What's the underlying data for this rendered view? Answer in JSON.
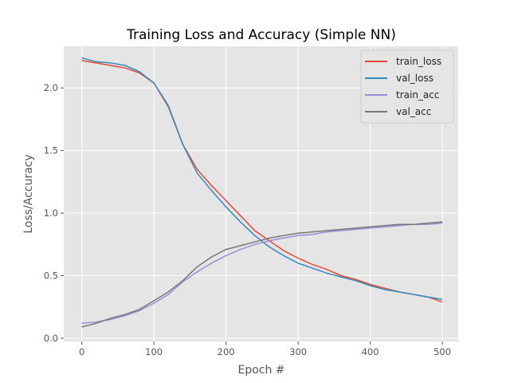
{
  "chart_data": {
    "type": "line",
    "title": "Training Loss and Accuracy (Simple NN)",
    "xlabel": "Epoch #",
    "ylabel": "Loss/Accuracy",
    "xlim": [
      -25,
      522
    ],
    "ylim": [
      -0.026,
      2.333
    ],
    "xticks": [
      0,
      100,
      200,
      300,
      400,
      500
    ],
    "yticks": [
      0.0,
      0.5,
      1.0,
      1.5,
      2.0
    ],
    "ytick_labels": [
      "0.0",
      "0.5",
      "1.0",
      "1.5",
      "2.0"
    ],
    "grid": true,
    "legend_position": "top-right",
    "x": [
      0,
      20,
      40,
      60,
      80,
      100,
      120,
      140,
      160,
      180,
      200,
      220,
      240,
      260,
      280,
      300,
      320,
      340,
      360,
      380,
      400,
      420,
      440,
      460,
      480,
      500
    ],
    "series": [
      {
        "name": "train_loss",
        "color": "#E24A33",
        "values": [
          2.22,
          2.2,
          2.18,
          2.16,
          2.12,
          2.04,
          1.85,
          1.55,
          1.35,
          1.22,
          1.1,
          0.98,
          0.86,
          0.78,
          0.7,
          0.64,
          0.59,
          0.55,
          0.5,
          0.47,
          0.43,
          0.4,
          0.37,
          0.35,
          0.33,
          0.29
        ]
      },
      {
        "name": "val_loss",
        "color": "#348ABD",
        "values": [
          2.24,
          2.21,
          2.2,
          2.18,
          2.13,
          2.04,
          1.86,
          1.55,
          1.32,
          1.18,
          1.05,
          0.93,
          0.82,
          0.73,
          0.66,
          0.6,
          0.56,
          0.52,
          0.49,
          0.46,
          0.42,
          0.39,
          0.37,
          0.35,
          0.33,
          0.31
        ]
      },
      {
        "name": "train_acc",
        "color": "#988ED5",
        "values": [
          0.12,
          0.13,
          0.15,
          0.18,
          0.22,
          0.28,
          0.35,
          0.45,
          0.53,
          0.6,
          0.66,
          0.71,
          0.75,
          0.78,
          0.8,
          0.82,
          0.83,
          0.85,
          0.86,
          0.87,
          0.88,
          0.89,
          0.9,
          0.91,
          0.91,
          0.92
        ]
      },
      {
        "name": "val_acc",
        "color": "#777777",
        "values": [
          0.09,
          0.12,
          0.16,
          0.19,
          0.23,
          0.3,
          0.37,
          0.46,
          0.57,
          0.65,
          0.71,
          0.74,
          0.77,
          0.8,
          0.82,
          0.84,
          0.85,
          0.86,
          0.87,
          0.88,
          0.89,
          0.9,
          0.91,
          0.91,
          0.92,
          0.93
        ]
      }
    ]
  }
}
